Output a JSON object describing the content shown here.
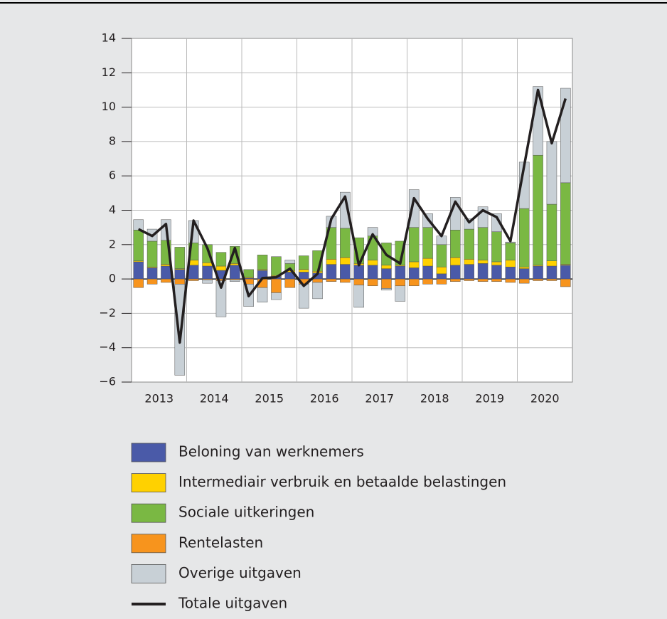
{
  "chart_data": {
    "type": "bar",
    "stacked": true,
    "categories": [
      null,
      null,
      null,
      null,
      null,
      null,
      null,
      null,
      null,
      null,
      null,
      null,
      null,
      null,
      null,
      null,
      null,
      null,
      null,
      null,
      null,
      null,
      null,
      null,
      null,
      null,
      null,
      null,
      null,
      null,
      null,
      null
    ],
    "year_labels": [
      "2013",
      "2014",
      "2015",
      "2016",
      "2017",
      "2018",
      "2019",
      "2020"
    ],
    "ylim": [
      -6,
      14
    ],
    "yticks": [
      {
        "value": -6,
        "label": "−6"
      },
      {
        "value": -4,
        "label": "−4"
      },
      {
        "value": -2,
        "label": "−2"
      },
      0,
      2,
      4,
      6,
      8,
      10,
      12,
      14
    ],
    "grid": true,
    "series": [
      {
        "name": "Beloning van werknemers",
        "color": "#4a5aa8",
        "values": [
          1.0,
          0.65,
          0.75,
          0.55,
          0.8,
          0.75,
          0.5,
          0.8,
          0.05,
          0.5,
          0.15,
          0.4,
          0.4,
          0.35,
          0.85,
          0.85,
          0.8,
          0.8,
          0.6,
          0.75,
          0.65,
          0.75,
          0.3,
          0.8,
          0.85,
          0.9,
          0.8,
          0.7,
          0.6,
          0.75,
          0.75,
          0.8
        ]
      },
      {
        "name": "Intermediair verbruik en betaalde belastingen",
        "color": "#ffd100",
        "values": [
          0.05,
          0.05,
          0.1,
          0.05,
          0.3,
          0.2,
          0.25,
          0.1,
          0.05,
          0.05,
          0.05,
          0.1,
          0.15,
          0.1,
          0.3,
          0.4,
          0.1,
          0.3,
          0.2,
          0.05,
          0.35,
          0.45,
          0.4,
          0.45,
          0.3,
          0.2,
          0.2,
          0.4,
          0.1,
          0.05,
          0.3,
          0.05
        ]
      },
      {
        "name": "Sociale uitkeringen",
        "color": "#7ab843",
        "values": [
          1.8,
          1.5,
          1.4,
          1.25,
          1.0,
          1.05,
          0.8,
          1.0,
          0.45,
          0.85,
          1.1,
          0.4,
          0.8,
          1.2,
          1.85,
          1.7,
          1.5,
          1.4,
          1.3,
          1.4,
          2.0,
          1.8,
          1.3,
          1.6,
          1.75,
          1.9,
          1.75,
          1.0,
          3.4,
          6.4,
          3.3,
          4.75
        ]
      },
      {
        "name": "Rentelasten",
        "color": "#f7941d",
        "values": [
          -0.5,
          -0.3,
          -0.2,
          -0.3,
          -0.1,
          -0.05,
          -0.1,
          -0.05,
          -0.3,
          -0.5,
          -0.8,
          -0.5,
          -0.3,
          -0.2,
          -0.15,
          -0.2,
          -0.35,
          -0.4,
          -0.55,
          -0.4,
          -0.4,
          -0.3,
          -0.3,
          -0.15,
          -0.1,
          -0.15,
          -0.15,
          -0.2,
          -0.25,
          -0.1,
          -0.1,
          -0.45
        ]
      },
      {
        "name": "Overige uitgaven",
        "color": "#c8d0d6",
        "values": [
          0.6,
          0.7,
          1.2,
          -5.3,
          1.3,
          -0.2,
          -2.1,
          -0.1,
          -1.3,
          -0.85,
          -0.4,
          0.2,
          -1.4,
          -0.95,
          0.65,
          2.1,
          -1.3,
          0.5,
          -0.1,
          -0.9,
          2.2,
          0.8,
          0.5,
          1.9,
          0.6,
          1.2,
          1.05,
          0.05,
          2.7,
          4.0,
          3.65,
          5.5
        ]
      }
    ],
    "line_series": {
      "name": "Totale uitgaven",
      "color": "#231f20",
      "values": [
        2.9,
        2.5,
        3.2,
        -3.7,
        3.4,
        1.8,
        -0.5,
        1.8,
        -1.0,
        0.05,
        0.1,
        0.6,
        -0.4,
        0.3,
        3.5,
        4.8,
        0.8,
        2.6,
        1.4,
        0.9,
        4.7,
        3.5,
        2.5,
        4.5,
        3.3,
        4.0,
        3.6,
        2.2,
        6.6,
        11.0,
        7.9,
        10.5
      ]
    }
  }
}
